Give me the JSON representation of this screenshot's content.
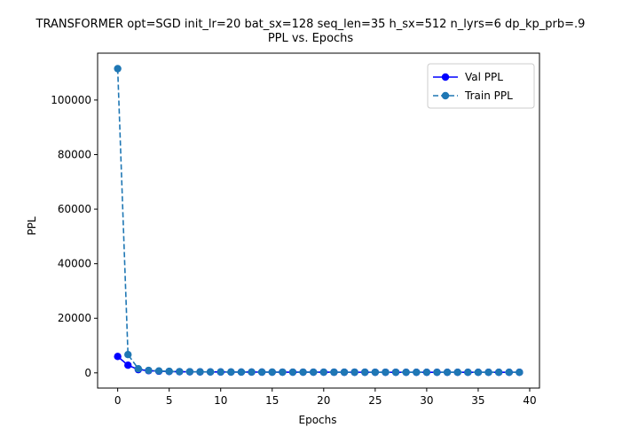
{
  "chart_data": {
    "type": "line",
    "title": "TRANSFORMER opt=SGD init_lr=20 bat_sx=128 seq_len=35 h_sx=512 n_lyrs=6 dp_kp_prb=.9",
    "subtitle": "PPL vs. Epochs",
    "xlabel": "Epochs",
    "ylabel": "PPL",
    "xlim": [
      -1.95,
      40.95
    ],
    "ylim": [
      -5580,
      117180
    ],
    "xticks": [
      0,
      5,
      10,
      15,
      20,
      25,
      30,
      35,
      40
    ],
    "yticks": [
      0,
      20000,
      40000,
      60000,
      80000,
      100000
    ],
    "grid": false,
    "legend_position": "top-right",
    "x": [
      0,
      1,
      2,
      3,
      4,
      5,
      6,
      7,
      8,
      9,
      10,
      11,
      12,
      13,
      14,
      15,
      16,
      17,
      18,
      19,
      20,
      21,
      22,
      23,
      24,
      25,
      26,
      27,
      28,
      29,
      30,
      31,
      32,
      33,
      34,
      35,
      36,
      37,
      38,
      39
    ],
    "series": [
      {
        "name": "Val PPL",
        "color": "#0000ff",
        "style": "solid",
        "marker": "circle",
        "values": [
          6000,
          2800,
          1200,
          800,
          600,
          500,
          420,
          380,
          350,
          330,
          310,
          300,
          290,
          280,
          270,
          260,
          255,
          250,
          245,
          240,
          235,
          230,
          228,
          225,
          222,
          220,
          218,
          216,
          214,
          212,
          210,
          208,
          206,
          205,
          204,
          203,
          202,
          201,
          200,
          199
        ]
      },
      {
        "name": "Train PPL",
        "color": "#1f77b4",
        "style": "dashed",
        "marker": "circle",
        "values": [
          111500,
          6700,
          1500,
          900,
          700,
          550,
          450,
          400,
          370,
          340,
          320,
          305,
          295,
          285,
          275,
          265,
          258,
          252,
          247,
          242,
          237,
          232,
          229,
          226,
          223,
          221,
          219,
          217,
          215,
          213,
          211,
          209,
          207,
          206,
          205,
          204,
          203,
          202,
          201,
          200
        ]
      }
    ]
  }
}
